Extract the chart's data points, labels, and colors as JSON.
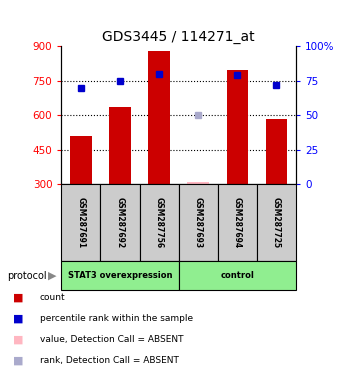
{
  "title": "GDS3445 / 114271_at",
  "samples": [
    "GSM287691",
    "GSM287692",
    "GSM287756",
    "GSM287693",
    "GSM287694",
    "GSM287725"
  ],
  "red_bar_values": [
    510,
    635,
    880,
    310,
    795,
    585
  ],
  "blue_square_values": [
    70,
    75,
    80,
    null,
    79,
    72
  ],
  "absent_bar_value": [
    null,
    null,
    null,
    310,
    null,
    null
  ],
  "absent_rank_value": [
    null,
    null,
    null,
    50,
    null,
    null
  ],
  "ylim_left": [
    300,
    900
  ],
  "ylim_right": [
    0,
    100
  ],
  "yticks_left": [
    300,
    450,
    600,
    750,
    900
  ],
  "yticks_right": [
    0,
    25,
    50,
    75,
    100
  ],
  "ytick_labels_right": [
    "0",
    "25",
    "50",
    "75",
    "100%"
  ],
  "group1": "STAT3 overexpression",
  "group2": "control",
  "group1_count": 3,
  "group2_count": 3,
  "group_color": "#90EE90",
  "bar_color": "#CC0000",
  "absent_bar_color": "#FFB6C1",
  "blue_color": "#0000CC",
  "absent_rank_color": "#AAAACC",
  "protocol_label": "protocol",
  "legend_items": [
    {
      "color": "#CC0000",
      "label": "count"
    },
    {
      "color": "#0000CC",
      "label": "percentile rank within the sample"
    },
    {
      "color": "#FFB6C1",
      "label": "value, Detection Call = ABSENT"
    },
    {
      "color": "#AAAACC",
      "label": "rank, Detection Call = ABSENT"
    }
  ]
}
